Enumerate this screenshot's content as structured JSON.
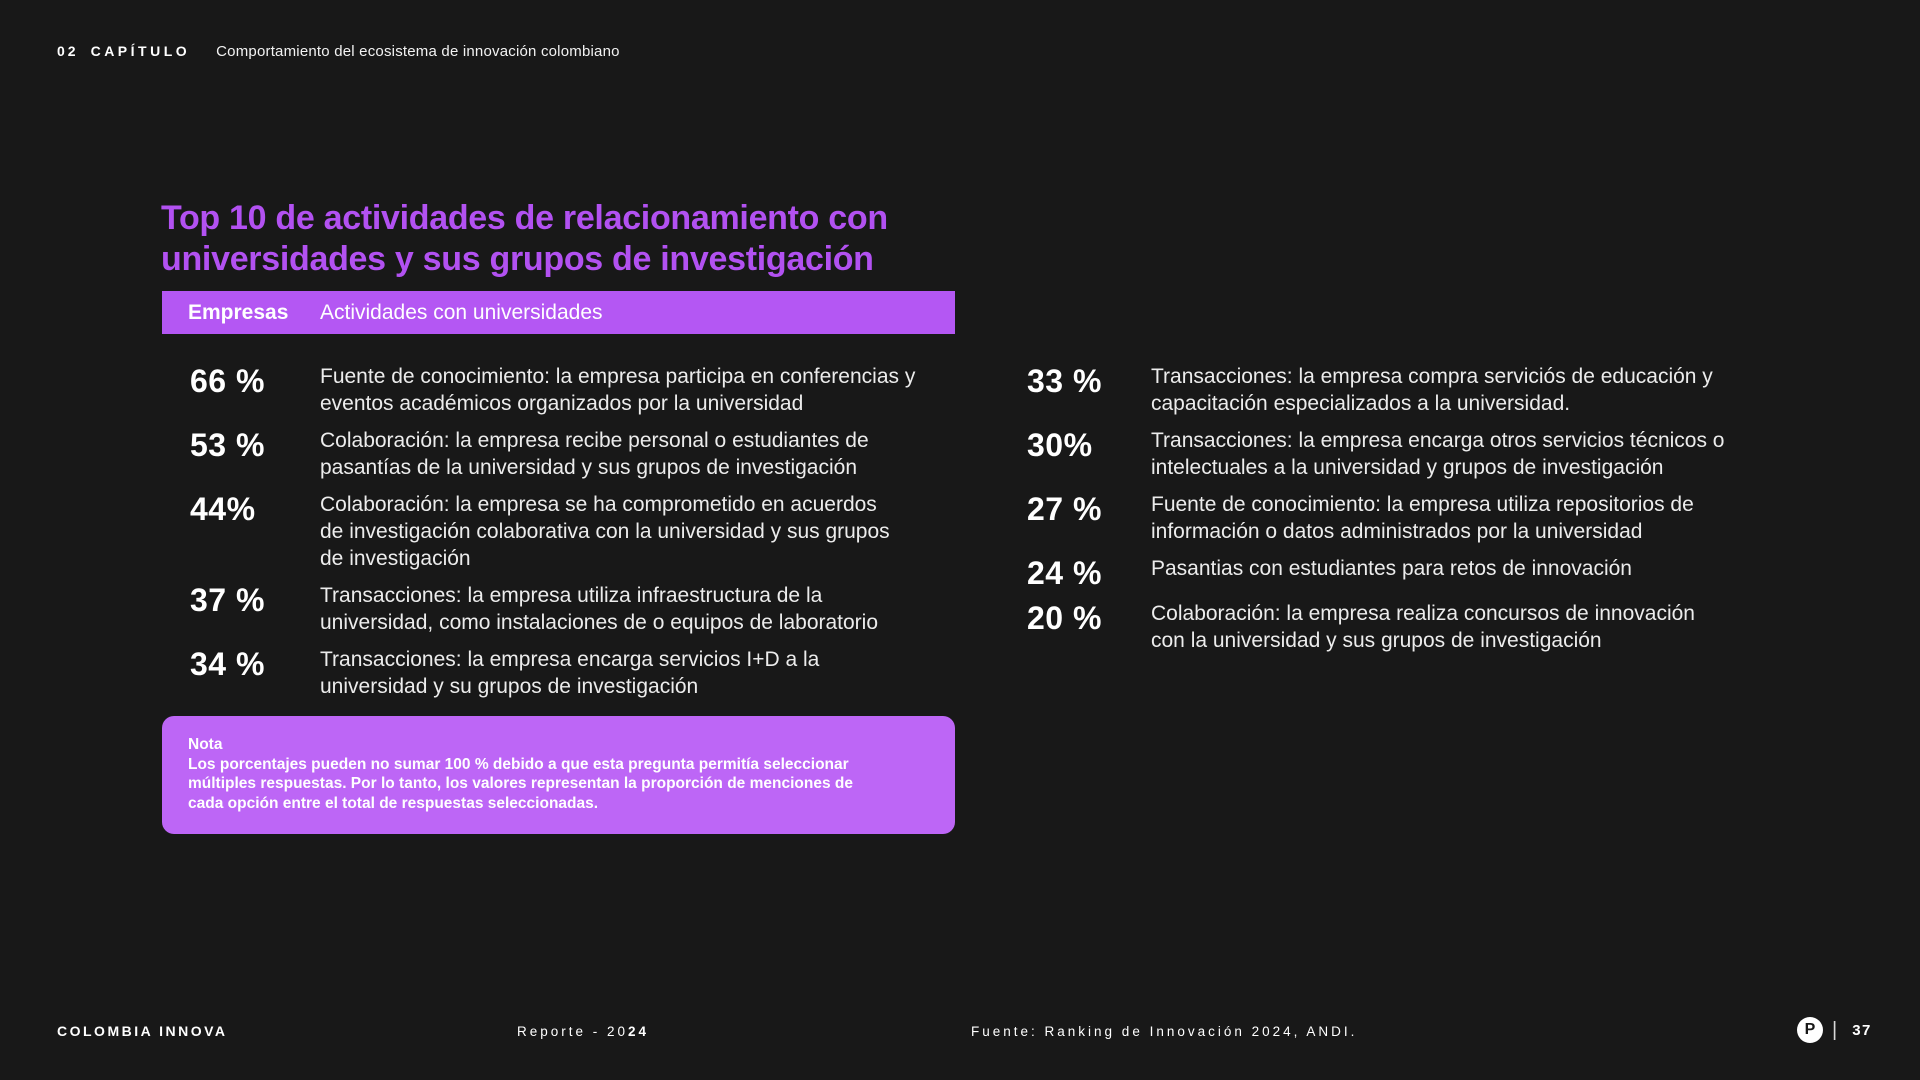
{
  "header": {
    "chapter_number": "02",
    "chapter_label": "CAPÍTULO",
    "chapter_title": "Comportamiento del ecosistema de innovación colombiano"
  },
  "title": {
    "lines": [
      "Top 10 de actividades de relacionamiento con",
      "universidades y sus grupos de investigación"
    ]
  },
  "table_header": {
    "companies": "Empresas",
    "activities": "Actividades con universidades"
  },
  "stats": {
    "left": [
      {
        "value": "66 %",
        "lines": [
          "Fuente de conocimiento: la empresa participa en conferencias y",
          "eventos académicos organizados por la universidad"
        ]
      },
      {
        "value": "53 %",
        "lines": [
          "Colaboración: la empresa recibe personal o estudiantes de",
          "pasantías de la universidad y sus grupos de investigación"
        ]
      },
      {
        "value": "44%",
        "lines": [
          "Colaboración: la empresa se ha comprometido en acuerdos",
          "de investigación colaborativa con la universidad y sus grupos",
          "de investigación"
        ]
      },
      {
        "value": "37 %",
        "lines": [
          "Transacciones: la empresa utiliza infraestructura de la",
          "universidad, como instalaciones de o equipos de laboratorio"
        ]
      },
      {
        "value": "34 %",
        "lines": [
          "Transacciones: la empresa encarga servicios I+D a la",
          "universidad y su grupos de investigación"
        ]
      }
    ],
    "right": [
      {
        "value": "33 %",
        "lines": [
          "Transacciones: la empresa compra serviciós de educación y",
          "capacitación especializados a la universidad."
        ]
      },
      {
        "value": "30%",
        "lines": [
          "Transacciones: la empresa encarga otros servicios técnicos o",
          "intelectuales a la universidad y grupos de investigación"
        ]
      },
      {
        "value": "27 %",
        "lines": [
          "Fuente de conocimiento: la empresa utiliza repositorios de",
          "información o datos administrados por la universidad"
        ]
      },
      {
        "value": "24 %",
        "lines": [
          "Pasantias con estudiantes para retos de innovación"
        ]
      },
      {
        "value": "20 %",
        "lines": [
          "Colaboración: la empresa realiza concursos de innovación",
          "con la universidad y sus grupos de investigación"
        ]
      }
    ]
  },
  "note": {
    "title": "Nota",
    "lines": [
      "Los porcentajes pueden no sumar 100 % debido a que esta pregunta permitía seleccionar",
      "múltiples respuestas. Por lo tanto, los valores representan la proporción de menciones de",
      "cada opción entre el total de respuestas seleccionadas."
    ]
  },
  "footer": {
    "brand": "COLOMBIA INNOVA",
    "report_prefix": "Reporte - 20",
    "report_year_bold": "24",
    "source": "Fuente: Ranking de Innovación 2024, ANDI.",
    "logo_letter": "P",
    "divider": "|",
    "page_number": "37"
  },
  "colors": {
    "background": "#181818",
    "title_purple": "#b251f1",
    "bar_purple": "#b457f3",
    "note_purple": "#bd66f6",
    "text": "#ffffff"
  }
}
